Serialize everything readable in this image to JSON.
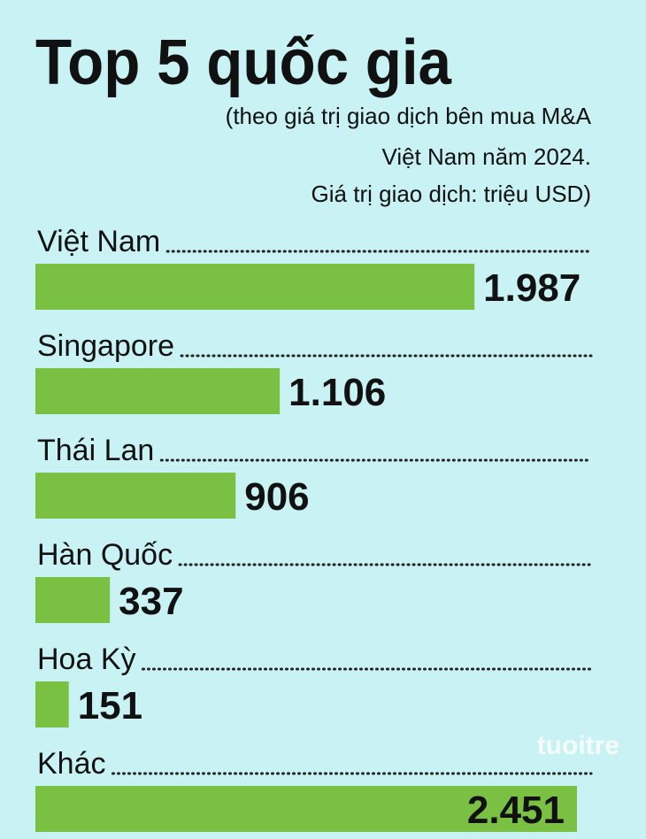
{
  "chart_data": {
    "type": "bar",
    "orientation": "horizontal",
    "title": "Top 5 quốc gia",
    "subtitle": [
      "(theo giá trị giao dịch bên mua M&A",
      "Việt Nam năm 2024.",
      "Giá trị giao dịch: triệu USD)"
    ],
    "categories": [
      "Việt Nam",
      "Singapore",
      "Thái Lan",
      "Hàn Quốc",
      "Hoa Kỳ",
      "Khác"
    ],
    "values": [
      1987,
      1106,
      906,
      337,
      151,
      2451
    ],
    "value_labels": [
      "1.987",
      "1.106",
      "906",
      "337",
      "151",
      "2.451"
    ],
    "color": "#7ac143",
    "watermark": "tuoitre"
  }
}
